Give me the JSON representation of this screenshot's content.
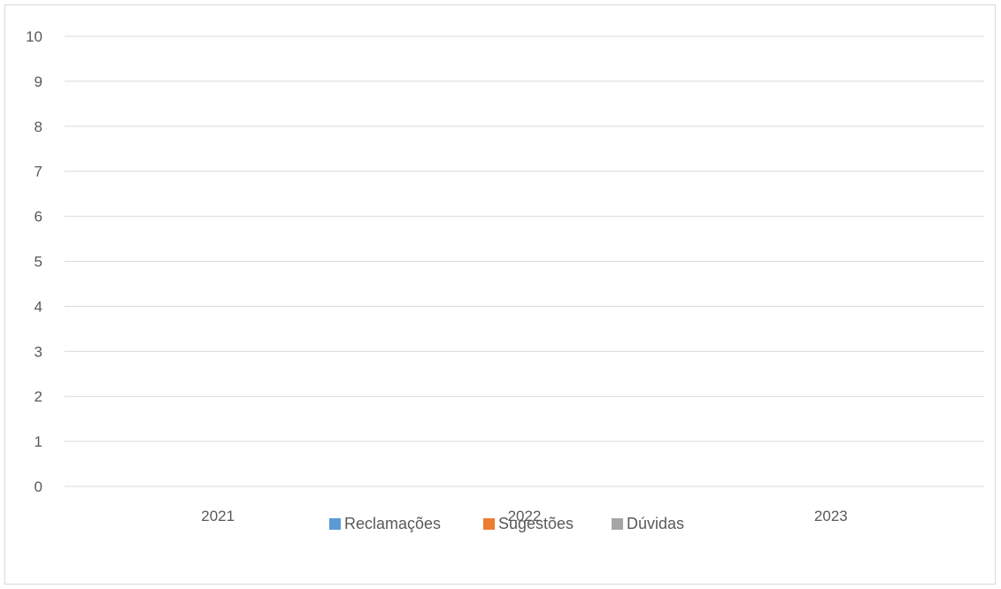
{
  "chart_data": {
    "type": "bar",
    "title": "",
    "xlabel": "",
    "ylabel": "",
    "categories": [
      "2021",
      "2022",
      "2023"
    ],
    "series": [
      {
        "name": "Reclamações",
        "color": "#5b9bd5",
        "values": [
          0,
          0,
          0
        ]
      },
      {
        "name": "Sugestões",
        "color": "#ed7d31",
        "values": [
          0,
          0,
          0
        ]
      },
      {
        "name": "Dúvidas",
        "color": "#a5a5a5",
        "values": [
          0,
          0,
          0
        ]
      }
    ],
    "ylim": [
      0,
      10
    ],
    "yticks": [
      "0",
      "1",
      "2",
      "3",
      "4",
      "5",
      "6",
      "7",
      "8",
      "9",
      "10"
    ],
    "grid": true,
    "legend_position": "bottom"
  }
}
